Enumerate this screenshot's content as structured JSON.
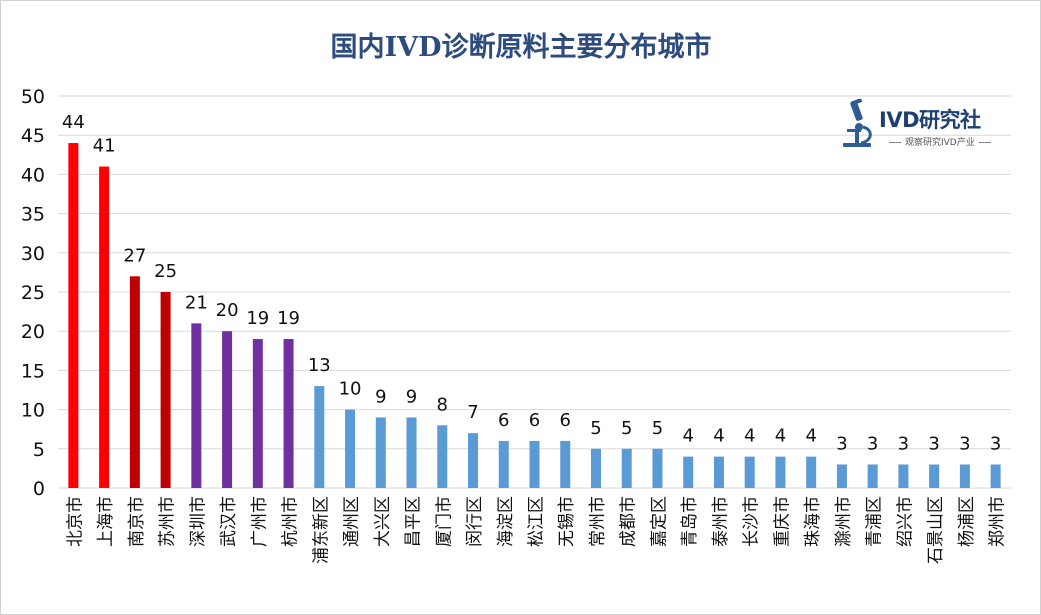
{
  "chart_data": {
    "type": "bar",
    "title": "国内IVD诊断原料主要分布城市",
    "xlabel": "",
    "ylabel": "",
    "ylim": [
      0,
      50
    ],
    "yticks": [
      0,
      5,
      10,
      15,
      20,
      25,
      30,
      35,
      40,
      45,
      50
    ],
    "grid": true,
    "categories": [
      "北京市",
      "上海市",
      "南京市",
      "苏州市",
      "深圳市",
      "武汉市",
      "广州市",
      "杭州市",
      "浦东新区",
      "通州区",
      "大兴区",
      "昌平区",
      "厦门市",
      "闵行区",
      "海淀区",
      "松江区",
      "无锡市",
      "常州市",
      "成都市",
      "嘉定区",
      "青岛市",
      "泰州市",
      "长沙市",
      "重庆市",
      "珠海市",
      "滁州市",
      "青浦区",
      "绍兴市",
      "石景山区",
      "杨浦区",
      "郑州市"
    ],
    "values": [
      44,
      41,
      27,
      25,
      21,
      20,
      19,
      19,
      13,
      10,
      9,
      9,
      8,
      7,
      6,
      6,
      6,
      5,
      5,
      5,
      4,
      4,
      4,
      4,
      4,
      3,
      3,
      3,
      3,
      3,
      3
    ],
    "bar_colors": [
      "#ff0000",
      "#ff0000",
      "#c00000",
      "#c00000",
      "#7030a0",
      "#7030a0",
      "#7030a0",
      "#7030a0",
      "#5b9bd5",
      "#5b9bd5",
      "#5b9bd5",
      "#5b9bd5",
      "#5b9bd5",
      "#5b9bd5",
      "#5b9bd5",
      "#5b9bd5",
      "#5b9bd5",
      "#5b9bd5",
      "#5b9bd5",
      "#5b9bd5",
      "#5b9bd5",
      "#5b9bd5",
      "#5b9bd5",
      "#5b9bd5",
      "#5b9bd5",
      "#5b9bd5",
      "#5b9bd5",
      "#5b9bd5",
      "#5b9bd5",
      "#5b9bd5",
      "#5b9bd5"
    ]
  },
  "logo": {
    "name": "IVD研究社",
    "tagline": "观察研究IVD产业",
    "icon": "microscope-icon",
    "color": "#1e3f73"
  },
  "colors": {
    "grid": "#d9d9d9",
    "title": "#2e4b7e"
  }
}
